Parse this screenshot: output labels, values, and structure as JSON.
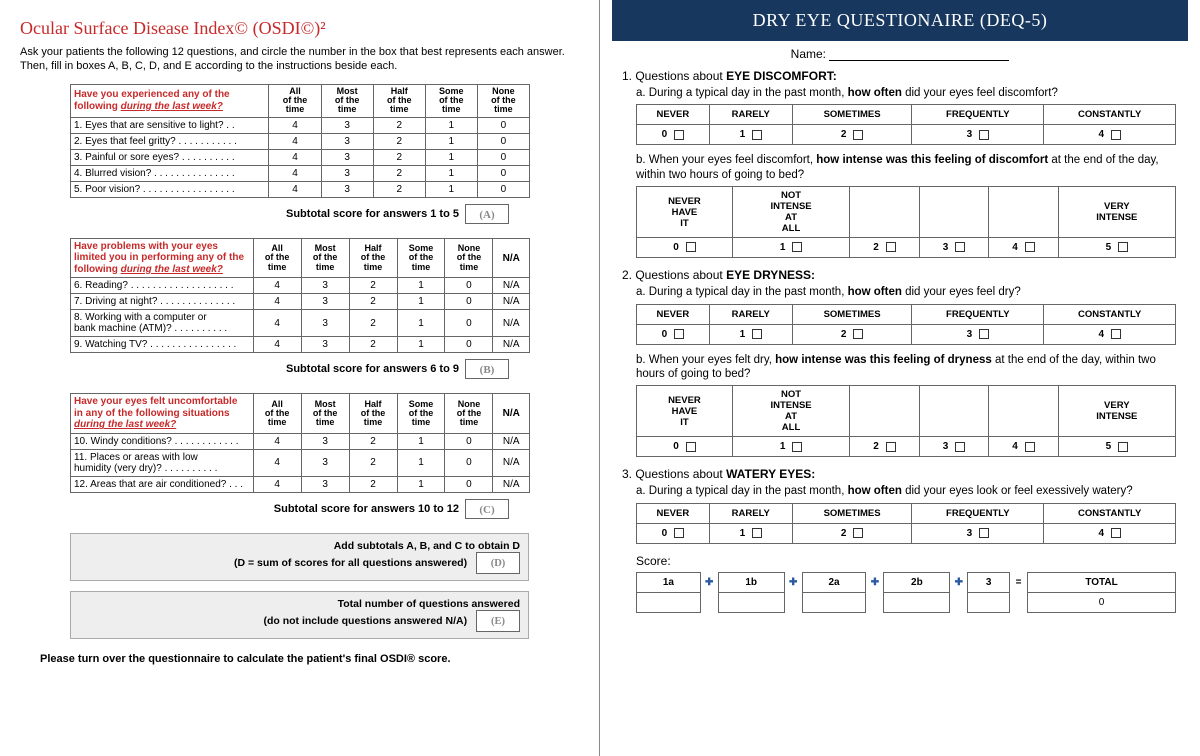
{
  "osdi": {
    "title": "Ocular Surface Disease Index© (OSDI©)²",
    "intro": "Ask your patients the following 12 questions, and circle the number in the box that best represents each answer. Then, fill in boxes A, B, C, D, and E according to the instructions beside each.",
    "col_headers": [
      "All of the time",
      "Most of the time",
      "Half of the time",
      "Some of the time",
      "None of the time"
    ],
    "na_header": "N/A",
    "sections": [
      {
        "prompt_line1": "Have you experienced any of the",
        "prompt_line2": "following",
        "prompt_underline": "during the last week?",
        "has_na": false,
        "rows": [
          {
            "q": "1. Eyes that are sensitive to light? . .",
            "v": [
              "4",
              "3",
              "2",
              "1",
              "0"
            ]
          },
          {
            "q": "2. Eyes that feel gritty? . . . . . . . . . . .",
            "v": [
              "4",
              "3",
              "2",
              "1",
              "0"
            ]
          },
          {
            "q": "3. Painful or sore eyes? . . . . . . . . . .",
            "v": [
              "4",
              "3",
              "2",
              "1",
              "0"
            ]
          },
          {
            "q": "4. Blurred vision? . . . . . . . . . . . . . . .",
            "v": [
              "4",
              "3",
              "2",
              "1",
              "0"
            ]
          },
          {
            "q": "5. Poor vision? . . . . . . . . . . . . . . . . .",
            "v": [
              "4",
              "3",
              "2",
              "1",
              "0"
            ]
          }
        ],
        "subtotal_label": "Subtotal score for answers 1 to 5",
        "subtotal_letter": "(A)"
      },
      {
        "prompt_line1": "Have problems with your eyes",
        "prompt_line2": "limited you in performing any of the following",
        "prompt_underline": "during the last week?",
        "has_na": true,
        "rows": [
          {
            "q": "6. Reading? . . . . . . . . . . . . . . . . . . .",
            "v": [
              "4",
              "3",
              "2",
              "1",
              "0"
            ],
            "na": "N/A"
          },
          {
            "q": "7. Driving at night? . . . . . . . . . . . . . .",
            "v": [
              "4",
              "3",
              "2",
              "1",
              "0"
            ],
            "na": "N/A"
          },
          {
            "q": "8. Working with a computer or\n    bank machine (ATM)? . . . . . . . . . .",
            "v": [
              "4",
              "3",
              "2",
              "1",
              "0"
            ],
            "na": "N/A"
          },
          {
            "q": "9. Watching TV? . . . . . . . . . . . . . . . .",
            "v": [
              "4",
              "3",
              "2",
              "1",
              "0"
            ],
            "na": "N/A"
          }
        ],
        "subtotal_label": "Subtotal score for answers 6 to 9",
        "subtotal_letter": "(B)"
      },
      {
        "prompt_line1": "Have your eyes felt uncomfortable",
        "prompt_line2": "in any of the following situations",
        "prompt_underline": "during the last week?",
        "has_na": true,
        "rows": [
          {
            "q": "10. Windy conditions? . . . . . . . . . . . .",
            "v": [
              "4",
              "3",
              "2",
              "1",
              "0"
            ],
            "na": "N/A"
          },
          {
            "q": "11. Places or areas with low\n     humidity (very dry)? . . . . . . . . . .",
            "v": [
              "4",
              "3",
              "2",
              "1",
              "0"
            ],
            "na": "N/A"
          },
          {
            "q": "12. Areas that are air conditioned? . . .",
            "v": [
              "4",
              "3",
              "2",
              "1",
              "0"
            ],
            "na": "N/A"
          }
        ],
        "subtotal_label": "Subtotal score for answers 10 to 12",
        "subtotal_letter": "(C)"
      }
    ],
    "calc_d_line1": "Add subtotals A, B, and C to obtain D",
    "calc_d_line2": "(D = sum of scores for all questions answered)",
    "calc_d_letter": "(D)",
    "calc_e_line1": "Total number of questions answered",
    "calc_e_line2": "(do not include questions answered N/A)",
    "calc_e_letter": "(E)",
    "turnover": "Please turn over the questionnaire to calculate the patient's final OSDI® score."
  },
  "deq": {
    "title": "DRY EYE QUESTIONAIRE (DEQ-5)",
    "name_label": "Name:",
    "freq_labels": [
      "NEVER",
      "RARELY",
      "SOMETIMES",
      "FREQUENTLY",
      "CONSTANTLY"
    ],
    "freq_values": [
      "0",
      "1",
      "2",
      "3",
      "4"
    ],
    "intense_labels": [
      "NEVER HAVE IT",
      "NOT INTENSE AT ALL",
      "",
      "",
      "",
      "VERY INTENSE"
    ],
    "intense_values": [
      "0",
      "1",
      "2",
      "3",
      "4",
      "5"
    ],
    "sections": [
      {
        "num": "1.",
        "head_pre": "Questions about ",
        "head_bold": "EYE DISCOMFORT:",
        "a_pre": "a. During a typical day in the past month, ",
        "a_bold": "how often",
        "a_post": " did your eyes feel discomfort?",
        "b_pre": "b. When your eyes feel discomfort, ",
        "b_bold": "how intense was this feeling of discomfort",
        "b_post": " at the end of the day, within two hours of going to bed?"
      },
      {
        "num": "2.",
        "head_pre": "Questions about ",
        "head_bold": "EYE DRYNESS:",
        "a_pre": "a. During a typical day in the past month, ",
        "a_bold": "how often",
        "a_post": " did your eyes feel dry?",
        "b_pre": "b. When your eyes felt dry, ",
        "b_bold": "how intense was this feeling of dryness",
        "b_post": " at the end of the day, within two hours of going to bed?"
      },
      {
        "num": "3.",
        "head_pre": "Questions about ",
        "head_bold": "WATERY EYES:",
        "a_pre": "a. During a typical day in the past month, ",
        "a_bold": "how often",
        "a_post": " did your eyes look or feel exessively watery?"
      }
    ],
    "score_label": "Score:",
    "score_cols": [
      "1a",
      "1b",
      "2a",
      "2b",
      "3",
      "TOTAL"
    ],
    "score_ops": [
      "+",
      "+",
      "+",
      "+",
      "="
    ],
    "score_total": "0"
  },
  "colors": {
    "osdi_red": "#c72a2a",
    "deq_navy": "#17375e",
    "border": "#666666",
    "grey_bg": "#eeeeee"
  }
}
